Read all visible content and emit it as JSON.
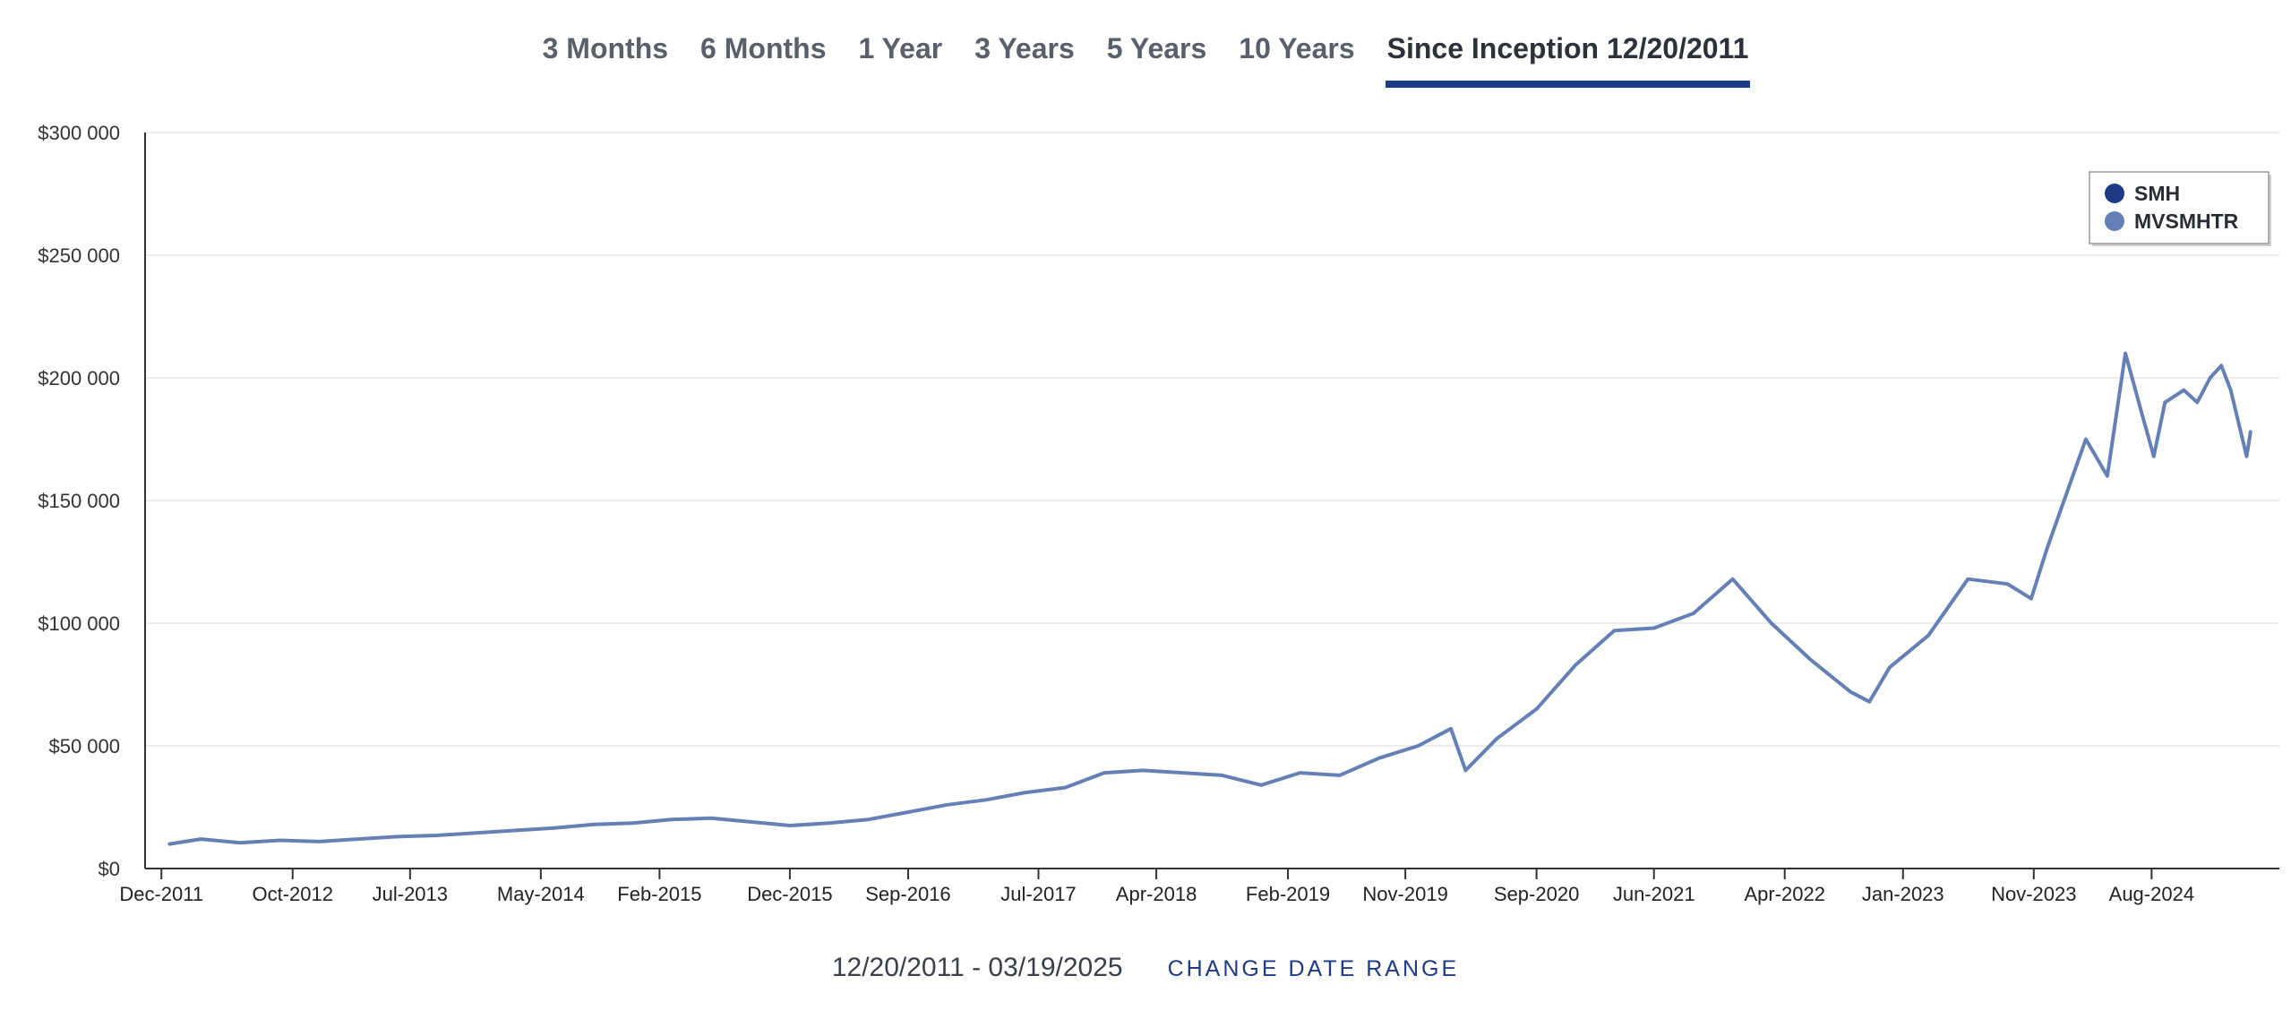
{
  "tabs": [
    {
      "label": "3 Months",
      "active": false
    },
    {
      "label": "6 Months",
      "active": false
    },
    {
      "label": "1 Year",
      "active": false
    },
    {
      "label": "3 Years",
      "active": false
    },
    {
      "label": "5 Years",
      "active": false
    },
    {
      "label": "10 Years",
      "active": false
    },
    {
      "label": "Since Inception 12/20/2011",
      "active": true
    }
  ],
  "footer": {
    "date_range": "12/20/2011 - 03/19/2025",
    "change_label": "CHANGE DATE RANGE"
  },
  "colors": {
    "accent": "#1f3b85",
    "smh": "#1f3b85",
    "mvsmhtr": "#6580b5",
    "grid": "#e6e6e6",
    "axis": "#333333"
  },
  "chart_data": {
    "type": "line",
    "title": "",
    "xlabel": "",
    "ylabel": "",
    "ylim": [
      0,
      300000
    ],
    "yticks": [
      0,
      50000,
      100000,
      150000,
      200000,
      250000,
      300000
    ],
    "ytick_labels": [
      "$0",
      "$50 000",
      "$100 000",
      "$150 000",
      "$200 000",
      "$250 000",
      "$300 000"
    ],
    "xticks": [
      "2011-12-01",
      "2012-10-01",
      "2013-07-01",
      "2014-05-01",
      "2015-02-01",
      "2015-12-01",
      "2016-09-01",
      "2017-07-01",
      "2018-04-01",
      "2019-02-01",
      "2019-11-01",
      "2020-09-01",
      "2021-06-01",
      "2022-04-01",
      "2023-01-01",
      "2023-11-01",
      "2024-08-01"
    ],
    "xtick_labels": [
      "Dec-2011",
      "Oct-2012",
      "Jul-2013",
      "May-2014",
      "Feb-2015",
      "Dec-2015",
      "Sep-2016",
      "Jul-2017",
      "Apr-2018",
      "Feb-2019",
      "Nov-2019",
      "Sep-2020",
      "Jun-2021",
      "Apr-2022",
      "Jan-2023",
      "Nov-2023",
      "Aug-2024"
    ],
    "xlim": [
      "2011-10-24",
      "2025-05-25"
    ],
    "grid": true,
    "legend_position": "top-right",
    "series": [
      {
        "name": "SMH",
        "color": "#1f3b85",
        "x": [],
        "y": []
      },
      {
        "name": "MVSMHTR",
        "color": "#6580b5",
        "x": [
          "2011-12-20",
          "2012-03-01",
          "2012-06-01",
          "2012-09-01",
          "2012-12-01",
          "2013-03-01",
          "2013-06-01",
          "2013-09-01",
          "2013-12-01",
          "2014-03-01",
          "2014-06-01",
          "2014-09-01",
          "2014-12-01",
          "2015-03-01",
          "2015-06-01",
          "2015-09-01",
          "2015-12-01",
          "2016-03-01",
          "2016-06-01",
          "2016-09-01",
          "2016-12-01",
          "2017-03-01",
          "2017-06-01",
          "2017-09-01",
          "2017-12-01",
          "2018-03-01",
          "2018-06-01",
          "2018-09-01",
          "2018-12-01",
          "2019-03-01",
          "2019-06-01",
          "2019-09-01",
          "2019-12-01",
          "2020-02-15",
          "2020-03-20",
          "2020-06-01",
          "2020-09-01",
          "2020-12-01",
          "2021-03-01",
          "2021-06-01",
          "2021-09-01",
          "2021-12-01",
          "2022-03-01",
          "2022-06-01",
          "2022-09-01",
          "2022-10-15",
          "2022-12-01",
          "2023-03-01",
          "2023-06-01",
          "2023-09-01",
          "2023-10-26",
          "2023-12-01",
          "2024-03-01",
          "2024-04-20",
          "2024-06-01",
          "2024-07-10",
          "2024-08-06",
          "2024-09-01",
          "2024-10-15",
          "2024-11-15",
          "2024-12-15",
          "2025-01-10",
          "2025-02-01",
          "2025-03-10",
          "2025-03-19"
        ],
        "y": [
          10000,
          12000,
          10500,
          11500,
          11000,
          12000,
          13000,
          13500,
          14500,
          15500,
          16500,
          18000,
          18500,
          20000,
          20500,
          19000,
          17500,
          18500,
          20000,
          23000,
          26000,
          28000,
          31000,
          33000,
          39000,
          40000,
          39000,
          38000,
          34000,
          39000,
          38000,
          45000,
          50000,
          57000,
          40000,
          53000,
          65000,
          83000,
          97000,
          98000,
          104000,
          118000,
          100000,
          85000,
          72000,
          68000,
          82000,
          95000,
          118000,
          116000,
          110000,
          130000,
          175000,
          160000,
          210000,
          185000,
          168000,
          190000,
          195000,
          190000,
          200000,
          205000,
          195000,
          168000,
          178000
        ]
      }
    ]
  }
}
